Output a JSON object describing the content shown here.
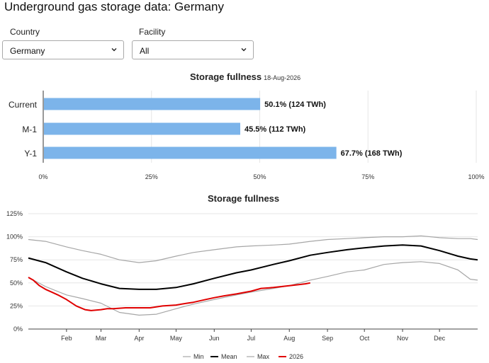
{
  "page": {
    "title": "Underground gas storage data: Germany"
  },
  "filters": {
    "country": {
      "label": "Country",
      "value": "Germany"
    },
    "facility": {
      "label": "Facility",
      "value": "All"
    }
  },
  "icons": {
    "dropdown": "chevron-down-icon"
  },
  "colors": {
    "bar": "#7cb4ea",
    "mean": "#000000",
    "min": "#a6a6a6",
    "max": "#a6a6a6",
    "current_year": "#e00000",
    "grid": "#e6e6e6"
  },
  "chart_data": [
    {
      "type": "bar",
      "orientation": "horizontal",
      "title": "Storage fullness",
      "subtitle": "18-Aug-2026",
      "categories": [
        "Current",
        "M-1",
        "Y-1"
      ],
      "values": [
        50.1,
        45.5,
        67.7
      ],
      "data_labels": [
        "50.1% (124 TWh)",
        "45.5% (112 TWh)",
        "67.7% (168 TWh)"
      ],
      "xlim": [
        0,
        100
      ],
      "xticks": [
        0,
        25,
        50,
        75,
        100
      ],
      "xtick_labels": [
        "0%",
        "25%",
        "50%",
        "75%",
        "100%"
      ],
      "grid": true
    },
    {
      "type": "line",
      "title": "Storage fullness",
      "ylim": [
        0,
        125
      ],
      "yticks": [
        0,
        25,
        50,
        75,
        100,
        125
      ],
      "ytick_labels": [
        "0%",
        "25%",
        "50%",
        "75%",
        "100%",
        "125%"
      ],
      "xlim": [
        1,
        366
      ],
      "xticks": [
        32,
        60,
        91,
        121,
        152,
        182,
        213,
        244,
        274,
        305,
        335
      ],
      "xtick_labels": [
        "Feb",
        "Mar",
        "Apr",
        "May",
        "Jun",
        "Jul",
        "Aug",
        "Sep",
        "Oct",
        "Nov",
        "Dec"
      ],
      "grid": true,
      "legend_position": "bottom",
      "series": [
        {
          "name": "Min",
          "color": "#a6a6a6",
          "x": [
            1,
            15,
            32,
            45,
            60,
            75,
            91,
            105,
            121,
            135,
            152,
            170,
            182,
            200,
            213,
            230,
            244,
            260,
            274,
            290,
            305,
            320,
            335,
            350,
            360,
            366
          ],
          "y": [
            56,
            46,
            37,
            33,
            28,
            18,
            15,
            16,
            22,
            27,
            32,
            37,
            40,
            44,
            47,
            53,
            57,
            62,
            64,
            70,
            72,
            73,
            71,
            64,
            54,
            53
          ]
        },
        {
          "name": "Mean",
          "color": "#000000",
          "x": [
            1,
            15,
            32,
            45,
            60,
            75,
            91,
            105,
            121,
            135,
            152,
            170,
            182,
            200,
            213,
            230,
            244,
            260,
            274,
            290,
            305,
            320,
            335,
            350,
            360,
            366
          ],
          "y": [
            77,
            72,
            62,
            55,
            49,
            44,
            43,
            43,
            45,
            49,
            55,
            61,
            64,
            70,
            74,
            80,
            83,
            86,
            88,
            90,
            91,
            90,
            85,
            79,
            76,
            75
          ]
        },
        {
          "name": "Max",
          "color": "#a6a6a6",
          "x": [
            1,
            15,
            32,
            45,
            60,
            75,
            91,
            105,
            121,
            135,
            152,
            170,
            182,
            200,
            213,
            230,
            244,
            260,
            274,
            290,
            305,
            320,
            335,
            350,
            360,
            366
          ],
          "y": [
            97,
            95,
            89,
            85,
            81,
            75,
            72,
            74,
            79,
            83,
            86,
            89,
            90,
            91,
            92,
            95,
            97,
            98,
            99,
            100,
            100,
            101,
            99,
            98,
            98,
            97
          ]
        },
        {
          "name": "2026",
          "color": "#e00000",
          "x": [
            1,
            5,
            10,
            15,
            20,
            25,
            32,
            40,
            47,
            52,
            60,
            65,
            70,
            80,
            91,
            100,
            110,
            121,
            130,
            135,
            145,
            152,
            160,
            170,
            182,
            190,
            200,
            213,
            220,
            226,
            230
          ],
          "y": [
            56,
            53,
            47,
            43,
            40,
            37,
            32,
            25,
            21,
            20,
            21,
            22,
            22,
            23,
            23,
            23,
            25,
            26,
            28,
            29,
            32,
            34,
            36,
            38,
            41,
            44,
            45,
            47,
            48,
            49,
            50
          ]
        }
      ]
    }
  ]
}
